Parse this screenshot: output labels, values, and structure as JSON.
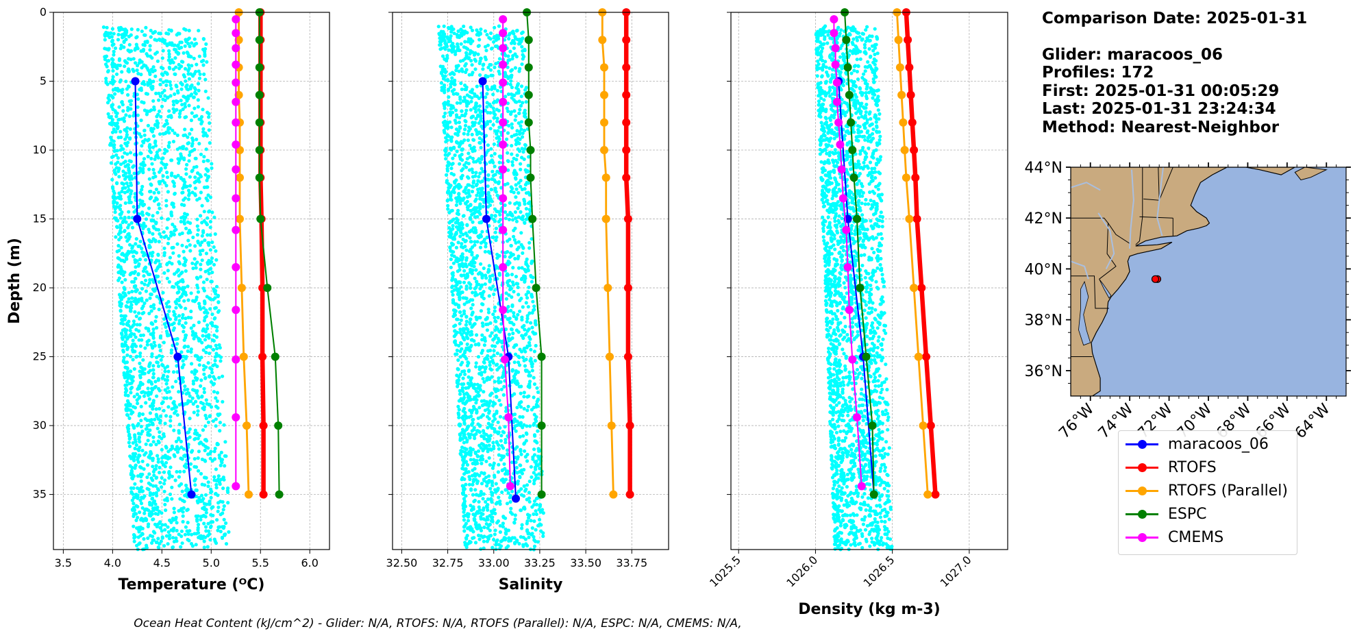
{
  "info": {
    "comparison_date": "Comparison Date: 2025-01-31",
    "glider": "Glider: maracoos_06",
    "profiles": "Profiles: 172",
    "first": "First: 2025-01-31 00:05:29",
    "last": "Last: 2025-01-31 23:24:34",
    "method": "Method: Nearest-Neighbor"
  },
  "footer": "Ocean Heat Content (kJ/cm^2) - Glider: N/A,  RTOFS: N/A,  RTOFS (Parallel): N/A,  ESPC: N/A,  CMEMS: N/A,",
  "legend": [
    {
      "label": "maracoos_06",
      "color": "#0000ff"
    },
    {
      "label": "RTOFS",
      "color": "#ff0000"
    },
    {
      "label": "RTOFS (Parallel)",
      "color": "#ffa500"
    },
    {
      "label": "ESPC",
      "color": "#008000"
    },
    {
      "label": "CMEMS",
      "color": "#ff00ff"
    }
  ],
  "colors": {
    "scatter": "#00ffff",
    "land": "#c9aa7f",
    "ocean": "#98b4e0",
    "rivers": "#a9bfe0"
  },
  "chart_data": [
    {
      "type": "line",
      "xlabel": "Temperature (ᴼC)",
      "ylabel": "Depth (m)",
      "xlim": [
        3.4,
        6.2
      ],
      "ylim": [
        39,
        0
      ],
      "xticks": [
        "3.5",
        "4.0",
        "4.5",
        "5.0",
        "5.5",
        "6.0"
      ],
      "xtick_values": [
        3.5,
        4.0,
        4.5,
        5.0,
        5.5,
        6.0
      ],
      "yticks": [
        "0",
        "5",
        "10",
        "15",
        "20",
        "25",
        "30",
        "35"
      ],
      "ytick_values": [
        0,
        5,
        10,
        15,
        20,
        25,
        30,
        35
      ],
      "grid": true,
      "scatter_cloud": {
        "series": "maracoos_06 raw profiles",
        "x_range": [
          3.9,
          5.2
        ],
        "y_range": [
          1,
          39
        ]
      },
      "series": [
        {
          "name": "maracoos_06",
          "color": "#0000ff",
          "width": 1.6,
          "depth": [
            5,
            15,
            25,
            35
          ],
          "values": [
            4.23,
            4.25,
            4.66,
            4.8
          ]
        },
        {
          "name": "RTOFS",
          "color": "#ff0000",
          "width": 5,
          "depth": [
            0,
            2,
            4,
            6,
            8,
            10,
            12,
            15,
            20,
            25,
            30,
            35
          ],
          "values": [
            5.5,
            5.5,
            5.5,
            5.5,
            5.5,
            5.5,
            5.5,
            5.51,
            5.52,
            5.52,
            5.53,
            5.53
          ]
        },
        {
          "name": "RTOFS (Parallel)",
          "color": "#ffa500",
          "width": 2.2,
          "depth": [
            0,
            2,
            4,
            6,
            8,
            10,
            12,
            15,
            20,
            25,
            30,
            35
          ],
          "values": [
            5.28,
            5.28,
            5.28,
            5.28,
            5.29,
            5.29,
            5.29,
            5.29,
            5.31,
            5.33,
            5.36,
            5.38
          ]
        },
        {
          "name": "ESPC",
          "color": "#008000",
          "width": 1.6,
          "depth": [
            0,
            2,
            4,
            6,
            8,
            10,
            12,
            15,
            20,
            25,
            30,
            35
          ],
          "values": [
            5.49,
            5.49,
            5.49,
            5.49,
            5.49,
            5.49,
            5.49,
            5.5,
            5.57,
            5.65,
            5.68,
            5.69
          ]
        },
        {
          "name": "CMEMS",
          "color": "#ff00ff",
          "width": 1.6,
          "depth": [
            0.5,
            1.5,
            2.6,
            3.8,
            5.1,
            6.5,
            8,
            9.6,
            11.4,
            13.5,
            15.8,
            18.5,
            21.6,
            25.2,
            29.4,
            34.4
          ],
          "values": [
            5.25,
            5.25,
            5.25,
            5.25,
            5.25,
            5.25,
            5.25,
            5.25,
            5.25,
            5.25,
            5.25,
            5.25,
            5.25,
            5.25,
            5.25,
            5.25
          ]
        }
      ]
    },
    {
      "type": "line",
      "xlabel": "Salinity",
      "ylim": [
        39,
        0
      ],
      "xlim": [
        32.45,
        33.95
      ],
      "xticks": [
        "32.50",
        "32.75",
        "33.00",
        "33.25",
        "33.50",
        "33.75"
      ],
      "xtick_values": [
        32.5,
        32.75,
        33.0,
        33.25,
        33.5,
        33.75
      ],
      "grid": true,
      "scatter_cloud": {
        "series": "maracoos_06 raw profiles",
        "x_range": [
          32.7,
          33.28
        ],
        "y_range": [
          1,
          39
        ]
      },
      "series": [
        {
          "name": "maracoos_06",
          "color": "#0000ff",
          "width": 1.6,
          "depth": [
            5,
            15,
            25,
            35.3
          ],
          "values": [
            32.94,
            32.96,
            33.08,
            33.12
          ]
        },
        {
          "name": "RTOFS",
          "color": "#ff0000",
          "width": 5,
          "depth": [
            0,
            2,
            4,
            6,
            8,
            10,
            12,
            15,
            20,
            25,
            30,
            35
          ],
          "values": [
            33.72,
            33.72,
            33.72,
            33.72,
            33.72,
            33.72,
            33.72,
            33.73,
            33.73,
            33.73,
            33.74,
            33.74
          ]
        },
        {
          "name": "RTOFS (Parallel)",
          "color": "#ffa500",
          "width": 2.2,
          "depth": [
            0,
            2,
            4,
            6,
            8,
            10,
            12,
            15,
            20,
            25,
            30,
            35
          ],
          "values": [
            33.59,
            33.59,
            33.6,
            33.6,
            33.6,
            33.6,
            33.61,
            33.61,
            33.62,
            33.63,
            33.64,
            33.65
          ]
        },
        {
          "name": "ESPC",
          "color": "#008000",
          "width": 1.6,
          "depth": [
            0,
            2,
            4,
            6,
            8,
            10,
            12,
            15,
            20,
            25,
            30,
            35
          ],
          "values": [
            33.18,
            33.19,
            33.19,
            33.19,
            33.19,
            33.2,
            33.2,
            33.21,
            33.23,
            33.26,
            33.26,
            33.26
          ]
        },
        {
          "name": "CMEMS",
          "color": "#ff00ff",
          "width": 1.6,
          "depth": [
            0.5,
            1.5,
            2.6,
            3.8,
            5.1,
            6.5,
            8,
            9.6,
            11.4,
            13.5,
            15.8,
            18.5,
            21.6,
            25.2,
            29.4,
            34.4
          ],
          "values": [
            33.05,
            33.05,
            33.05,
            33.05,
            33.05,
            33.05,
            33.05,
            33.05,
            33.05,
            33.05,
            33.05,
            33.05,
            33.05,
            33.06,
            33.08,
            33.09
          ]
        }
      ]
    },
    {
      "type": "line",
      "xlabel": "Density (kg m-3)",
      "ylim": [
        39,
        0
      ],
      "xlim": [
        1025.45,
        1027.25
      ],
      "xticks": [
        "1025.5",
        "1026.0",
        "1026.5",
        "1027.0"
      ],
      "xtick_values": [
        1025.5,
        1026.0,
        1026.5,
        1027.0
      ],
      "xtick_rotation": 45,
      "grid": true,
      "scatter_cloud": {
        "series": "maracoos_06 raw profiles",
        "x_range": [
          1026.0,
          1026.5
        ],
        "y_range": [
          1,
          39
        ]
      },
      "series": [
        {
          "name": "maracoos_06",
          "color": "#0000ff",
          "width": 1.6,
          "depth": [
            5,
            15,
            25,
            35
          ],
          "values": [
            1026.15,
            1026.21,
            1026.31,
            1026.38
          ]
        },
        {
          "name": "RTOFS",
          "color": "#ff0000",
          "width": 5,
          "depth": [
            0,
            2,
            4,
            6,
            8,
            10,
            12,
            15,
            20,
            25,
            30,
            35
          ],
          "values": [
            1026.59,
            1026.6,
            1026.61,
            1026.62,
            1026.63,
            1026.64,
            1026.65,
            1026.66,
            1026.69,
            1026.72,
            1026.75,
            1026.78
          ]
        },
        {
          "name": "RTOFS (Parallel)",
          "color": "#ffa500",
          "width": 2.2,
          "depth": [
            0,
            2,
            4,
            6,
            8,
            10,
            12,
            15,
            20,
            25,
            30,
            35
          ],
          "values": [
            1026.53,
            1026.54,
            1026.55,
            1026.56,
            1026.57,
            1026.58,
            1026.59,
            1026.61,
            1026.64,
            1026.67,
            1026.7,
            1026.73
          ]
        },
        {
          "name": "ESPC",
          "color": "#008000",
          "width": 1.6,
          "depth": [
            0,
            2,
            4,
            6,
            8,
            10,
            12,
            15,
            20,
            25,
            30,
            35
          ],
          "values": [
            1026.19,
            1026.2,
            1026.21,
            1026.22,
            1026.23,
            1026.24,
            1026.25,
            1026.27,
            1026.29,
            1026.33,
            1026.37,
            1026.38
          ]
        },
        {
          "name": "CMEMS",
          "color": "#ff00ff",
          "width": 1.6,
          "depth": [
            0.5,
            1.5,
            2.6,
            3.8,
            5.1,
            6.5,
            8,
            9.6,
            11.4,
            13.5,
            15.8,
            18.5,
            21.6,
            25.2,
            29.4,
            34.4
          ],
          "values": [
            1026.12,
            1026.12,
            1026.13,
            1026.13,
            1026.14,
            1026.14,
            1026.15,
            1026.16,
            1026.17,
            1026.18,
            1026.2,
            1026.21,
            1026.22,
            1026.24,
            1026.27,
            1026.3
          ]
        }
      ]
    }
  ],
  "map": {
    "lat_ticks": [
      "44°N",
      "42°N",
      "40°N",
      "38°N",
      "36°N"
    ],
    "lat_values": [
      44,
      42,
      40,
      38,
      36
    ],
    "lon_ticks": [
      "76°W",
      "74°W",
      "72°W",
      "70°W",
      "68°W",
      "66°W",
      "64°W"
    ],
    "lon_values": [
      -76,
      -74,
      -72,
      -70,
      -68,
      -66,
      -64
    ],
    "lon_range": [
      -77,
      -63
    ],
    "lat_range": [
      35,
      44
    ],
    "glider_position": {
      "lon": -72.7,
      "lat": 39.6,
      "color": "#ff0000"
    }
  }
}
